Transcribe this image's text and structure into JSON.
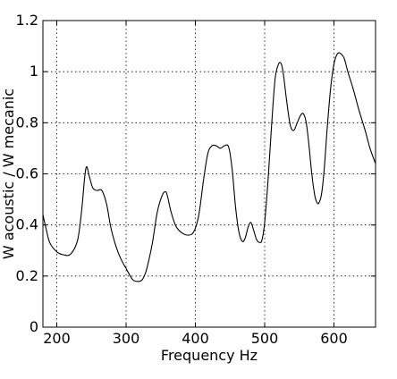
{
  "chart_data": {
    "type": "line",
    "title": "",
    "xlabel": "Frequency Hz",
    "ylabel": "W acoustic / W mecanic",
    "xlim": [
      180,
      660
    ],
    "ylim": [
      0,
      1.2
    ],
    "grid": true,
    "xticks": [
      200,
      300,
      400,
      500,
      600
    ],
    "yticks": [
      0,
      0.2,
      0.4,
      0.6,
      0.8,
      1,
      1.2
    ],
    "xtick_labels": [
      "200",
      "300",
      "400",
      "500",
      "600"
    ],
    "ytick_labels": [
      "0",
      "0.2",
      "0.4",
      "0.6",
      "0.8",
      "1",
      "1.2"
    ],
    "line_color": "#000000",
    "series": [
      {
        "x": [
          180,
          185,
          190,
          200,
          210,
          220,
          230,
          236,
          240,
          243,
          247,
          252,
          258,
          265,
          272,
          278,
          285,
          292,
          300,
          310,
          320,
          325,
          330,
          338,
          345,
          352,
          357,
          360,
          365,
          372,
          380,
          390,
          398,
          405,
          412,
          418,
          424,
          430,
          436,
          442,
          448,
          453,
          458,
          463,
          468,
          472,
          476,
          480,
          484,
          488,
          492,
          496,
          500,
          505,
          510,
          515,
          520,
          524,
          527,
          532,
          537,
          542,
          547,
          552,
          556,
          560,
          564,
          568,
          572,
          575,
          578,
          582,
          586,
          590,
          595,
          600,
          605,
          610,
          615,
          620,
          628,
          636,
          645,
          652,
          660
        ],
        "y": [
          0.44,
          0.38,
          0.33,
          0.295,
          0.283,
          0.286,
          0.34,
          0.46,
          0.58,
          0.628,
          0.59,
          0.545,
          0.535,
          0.535,
          0.48,
          0.39,
          0.32,
          0.27,
          0.23,
          0.185,
          0.18,
          0.193,
          0.23,
          0.33,
          0.45,
          0.515,
          0.53,
          0.51,
          0.45,
          0.395,
          0.37,
          0.36,
          0.375,
          0.44,
          0.58,
          0.68,
          0.71,
          0.71,
          0.7,
          0.71,
          0.705,
          0.62,
          0.47,
          0.37,
          0.335,
          0.35,
          0.39,
          0.41,
          0.38,
          0.345,
          0.332,
          0.34,
          0.41,
          0.58,
          0.79,
          0.97,
          1.03,
          1.03,
          0.99,
          0.88,
          0.79,
          0.77,
          0.8,
          0.83,
          0.835,
          0.8,
          0.71,
          0.6,
          0.52,
          0.49,
          0.485,
          0.52,
          0.62,
          0.77,
          0.93,
          1.03,
          1.07,
          1.07,
          1.05,
          1.0,
          0.93,
          0.85,
          0.77,
          0.7,
          0.64
        ]
      }
    ]
  }
}
